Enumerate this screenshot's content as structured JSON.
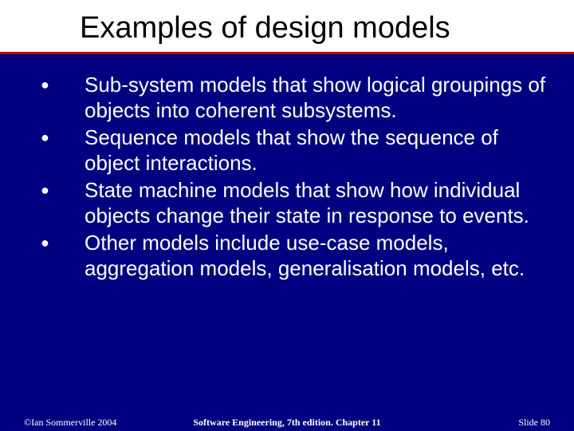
{
  "colors": {
    "background": "#000080",
    "title_bg": "#ffffff",
    "title_text": "#000000",
    "divider": "#c00000",
    "body_text": "#ffffff"
  },
  "typography": {
    "title_fontsize": 38,
    "body_fontsize": 26,
    "footer_fontsize": 12
  },
  "title": "Examples of design models",
  "bullets": [
    "Sub-system models that show logical groupings of objects into coherent subsystems.",
    "Sequence models that show the sequence of object interactions.",
    "State machine models that show how individual objects change their state in response to events.",
    "Other models include use-case models, aggregation models, generalisation models, etc."
  ],
  "footer": {
    "left": "©Ian Sommerville 2004",
    "center": "Software Engineering, 7th edition. Chapter 11",
    "right": "Slide 80"
  }
}
